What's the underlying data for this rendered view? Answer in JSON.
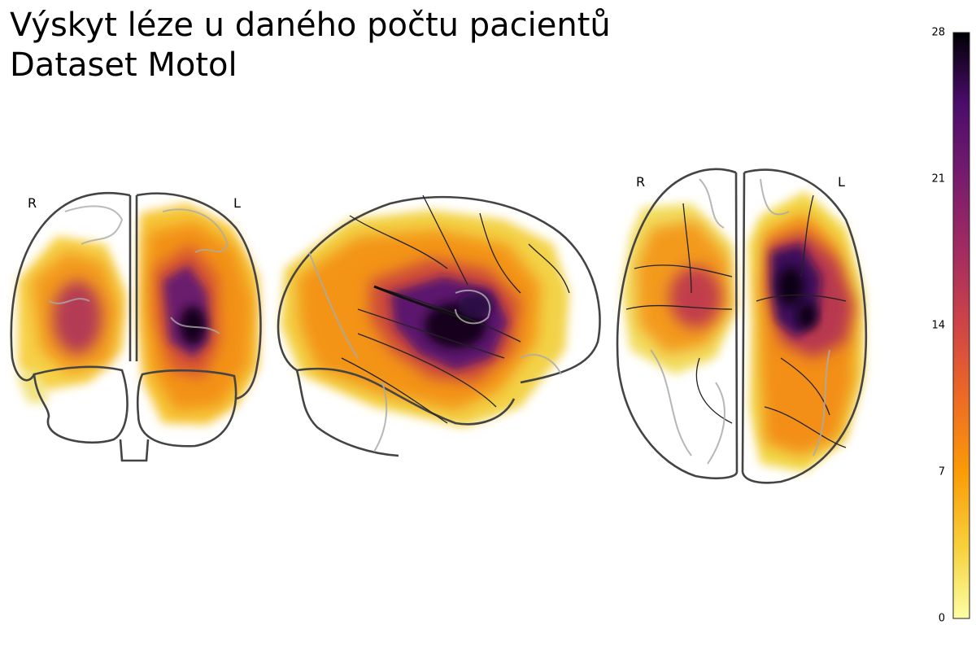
{
  "title_line1": "Výskyt léze u daného počtu pacientů",
  "title_line2": "Dataset Motol",
  "views": {
    "coronal": {
      "left": "R",
      "right": "L"
    },
    "axial": {
      "left": "R",
      "right": "L"
    }
  },
  "chart_data": {
    "type": "heatmap",
    "title": "Výskyt léze u daného počtu pacientů\nDataset Motol",
    "description": "Glass brain projection (coronal, sagittal, axial) of lesion frequency",
    "colormap": "inferno_r",
    "colorbar": {
      "min": 0,
      "max": 28,
      "ticks": [
        0,
        7,
        14,
        21,
        28
      ]
    },
    "peak_value": 28,
    "regions": [
      {
        "view": "coronal",
        "hemisphere": "L",
        "value": 26
      },
      {
        "view": "coronal",
        "hemisphere": "R",
        "value": 15
      },
      {
        "view": "sagittal",
        "region": "perisylvian",
        "value": 27
      },
      {
        "view": "axial",
        "hemisphere": "L",
        "value": 25
      },
      {
        "view": "axial",
        "hemisphere": "R",
        "value": 15
      }
    ]
  }
}
